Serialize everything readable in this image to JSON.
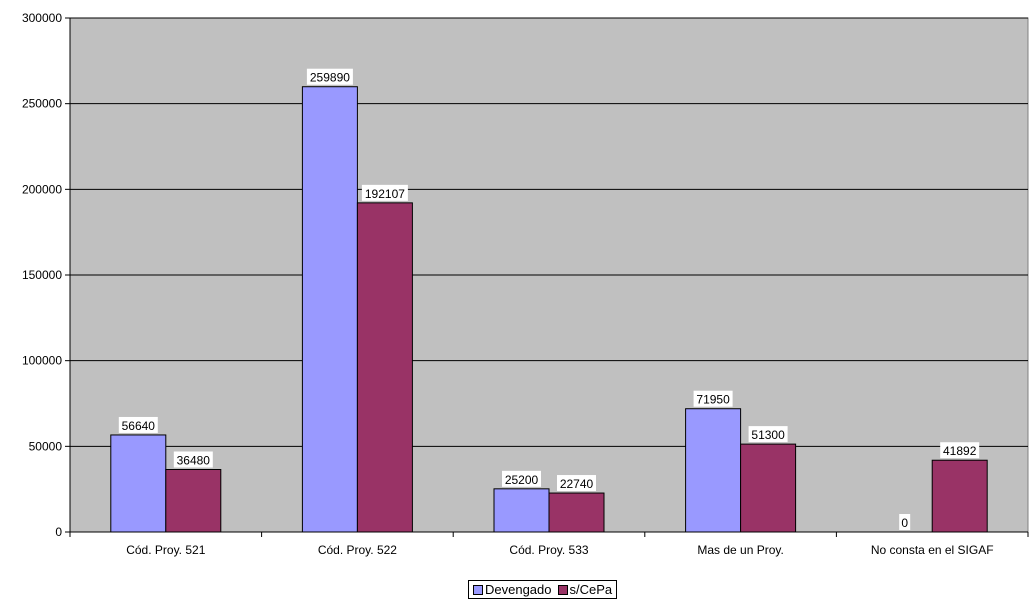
{
  "chart_data": {
    "type": "bar",
    "title": "",
    "xlabel": "",
    "ylabel": "",
    "categories": [
      "Cód. Proy. 521",
      "Cód. Proy. 522",
      "Cód. Proy. 533",
      "Mas de un Proy.",
      "No consta en el SIGAF"
    ],
    "series": [
      {
        "name": "Devengado",
        "color": "#9999ff",
        "values": [
          56640,
          259890,
          25200,
          71950,
          0
        ]
      },
      {
        "name": "s/CePa",
        "color": "#993366",
        "values": [
          36480,
          192107,
          22740,
          51300,
          41892
        ]
      }
    ],
    "ylim": [
      0,
      300000
    ],
    "yticks": [
      0,
      50000,
      100000,
      150000,
      200000,
      250000,
      300000
    ],
    "ytick_labels": [
      "0",
      "50000",
      "100000",
      "150000",
      "200000",
      "250000",
      "300000"
    ],
    "grid": true,
    "plot_background": "#c0c0c0",
    "legend_position": "bottom"
  }
}
